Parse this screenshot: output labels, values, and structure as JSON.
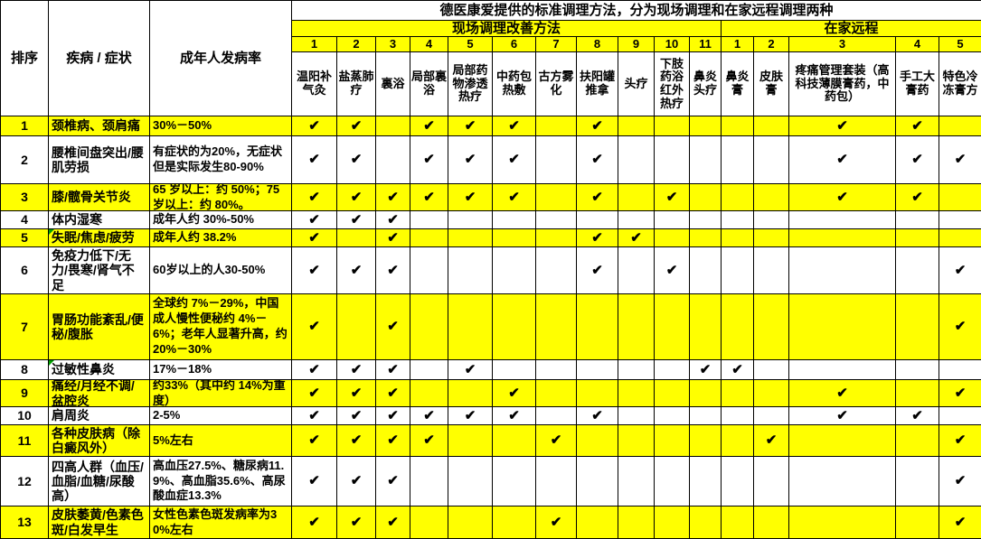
{
  "colors": {
    "highlight": "#FFFF00",
    "grid_line": "#000000",
    "text": "#000000",
    "note_marker": "#00A000"
  },
  "check_glyph": "✔",
  "header": {
    "rank": "排序",
    "disease": "疾病 / 症状",
    "rate": "成年人发病率",
    "main_title": "德医康爱提供的标准调理方法，分为现场调理和在家远程调理两种",
    "onsite_group": "现场调理改善方法",
    "home_group": "在家远程",
    "onsite_numbers": [
      "1",
      "2",
      "3",
      "4",
      "5",
      "6",
      "7",
      "8",
      "9",
      "10",
      "11"
    ],
    "home_numbers": [
      "1",
      "2",
      "3",
      "4",
      "5"
    ],
    "onsite_treatments": [
      "温阳补气灸",
      "盐蒸肺疗",
      "裏浴",
      "局部裏浴",
      "局部药物渗透热疗",
      "中药包热敷",
      "古方雾化",
      "扶阳罐推拿",
      "头疗",
      "下肢药浴红外热疗",
      "鼻炎头疗"
    ],
    "home_treatments": [
      "鼻炎膏",
      "皮肤膏",
      "疼痛管理套装（高科技薄膜膏药，中药包）",
      "手工大膏药",
      "特色冷冻膏方"
    ]
  },
  "rows": [
    {
      "rank": "1",
      "disease": "颈椎病、颈肩痛",
      "rate": "30%－50%",
      "highlight": true,
      "note": false,
      "onsite": [
        1,
        2,
        4,
        5,
        6,
        8
      ],
      "home": [
        3,
        4
      ]
    },
    {
      "rank": "2",
      "disease": "腰椎间盘突出/腰肌劳损",
      "rate": "有症状的为20%，无症状但是实际发生80-90%",
      "highlight": false,
      "note": false,
      "onsite": [
        1,
        2,
        4,
        5,
        6,
        8
      ],
      "home": [
        3,
        4,
        5
      ]
    },
    {
      "rank": "3",
      "disease": "膝/髋骨关节炎",
      "rate": "65 岁以上：约 50%；75 岁以上：约 80%。",
      "highlight": true,
      "note": false,
      "onsite": [
        1,
        2,
        3,
        4,
        5,
        6,
        8,
        10
      ],
      "home": [
        3,
        4
      ]
    },
    {
      "rank": "4",
      "disease": "体内湿寒",
      "rate": "成年人约 30%-50%",
      "highlight": false,
      "note": false,
      "onsite": [
        1,
        2,
        3
      ],
      "home": []
    },
    {
      "rank": "5",
      "disease": "失眠/焦虑/疲劳",
      "rate": "成年人约 38.2%",
      "highlight": true,
      "note": true,
      "onsite": [
        1,
        3,
        8,
        9
      ],
      "home": []
    },
    {
      "rank": "6",
      "disease": "免疫力低下/无力/畏寒/肾气不足",
      "rate": "60岁以上的人30-50%",
      "highlight": false,
      "note": false,
      "onsite": [
        1,
        2,
        3,
        8,
        10
      ],
      "home": [
        5
      ]
    },
    {
      "rank": "7",
      "disease": "胃肠功能紊乱/便秘/腹胀",
      "rate": "全球约 7%－29%，中国成人慢性便秘约 4%－6%；老年人显著升高，约 20%－30%",
      "highlight": true,
      "note": false,
      "onsite": [
        1,
        3
      ],
      "home": [
        5
      ]
    },
    {
      "rank": "8",
      "disease": "过敏性鼻炎",
      "rate": "17%－18%",
      "highlight": false,
      "note": true,
      "onsite": [
        1,
        2,
        3,
        5,
        11
      ],
      "home": [
        1
      ]
    },
    {
      "rank": "9",
      "disease": "痛经/月经不调/盆腔炎",
      "rate": "约33%（其中约 14%为重度）",
      "highlight": true,
      "note": false,
      "onsite": [
        1,
        2,
        3,
        6
      ],
      "home": [
        3,
        5
      ]
    },
    {
      "rank": "10",
      "disease": "肩周炎",
      "rate": "2-5%",
      "highlight": false,
      "note": false,
      "onsite": [
        1,
        2,
        3,
        4,
        5,
        6,
        8
      ],
      "home": [
        3,
        4
      ]
    },
    {
      "rank": "11",
      "disease": "各种皮肤病（除白癜风外）",
      "rate": "5%左右",
      "highlight": true,
      "note": false,
      "onsite": [
        1,
        2,
        3,
        4,
        7
      ],
      "home": [
        2,
        5
      ]
    },
    {
      "rank": "12",
      "disease": "四高人群（血压/血脂/血糖/尿酸高）",
      "rate": "高血压27.5%、糖尿病11.9%、高血脂35.6%、高尿酸血症13.3%",
      "highlight": false,
      "note": false,
      "onsite": [
        1,
        2,
        3
      ],
      "home": [
        5
      ]
    },
    {
      "rank": "13",
      "disease": "皮肤萎黄/色素色斑/白发早生",
      "rate": "女性色素色斑发病率为30%左右",
      "highlight": true,
      "note": false,
      "onsite": [
        1,
        2,
        3,
        7
      ],
      "home": [
        5
      ]
    }
  ]
}
